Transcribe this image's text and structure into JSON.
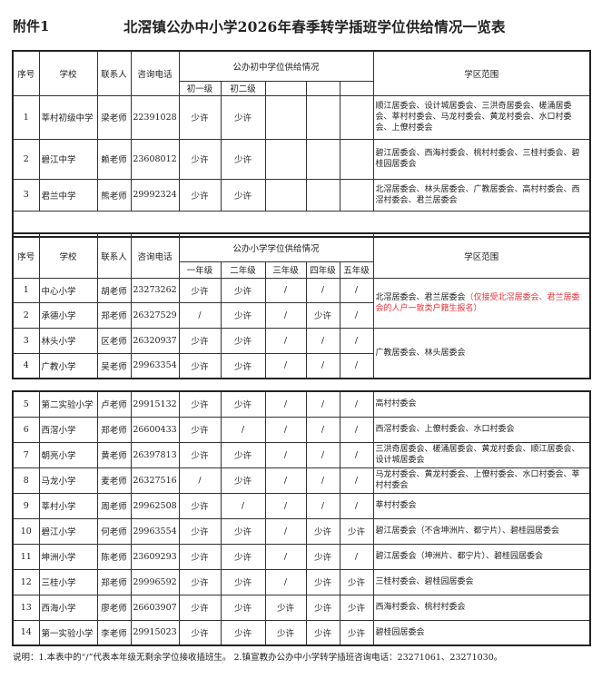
{
  "header": {
    "attachment": "附件1",
    "title": "北滘镇公办中小学2026年春季转学插班学位供给情况一览表"
  },
  "columns": {
    "no": "序号",
    "school": "学校",
    "contact": "联系人",
    "phone": "咨询电话",
    "region": "学区范围"
  },
  "middle": {
    "group_label": "公办初中学位供给情况",
    "grades": [
      "初一级",
      "初二级",
      "",
      "",
      ""
    ],
    "rows": [
      {
        "no": "1",
        "school": "莘村初级中学",
        "contact": "梁老师",
        "phone": "22391028",
        "seats": [
          "少许",
          "少许",
          "",
          "",
          ""
        ],
        "region": "顺江居委会、设计城居委会、三洪奇居委会、槎涌居委会、莘村村委会、马龙村委会、黄龙村委会、水口村委会、上僚村委会"
      },
      {
        "no": "2",
        "school": "碧江中学",
        "contact": "赖老师",
        "phone": "23608012",
        "seats": [
          "少许",
          "少许",
          "",
          "",
          ""
        ],
        "region": "碧江居委会、西海村委会、桃村村委会、三桂村委会、碧桂园居委会"
      },
      {
        "no": "3",
        "school": "君兰中学",
        "contact": "熊老师",
        "phone": "29992324",
        "seats": [
          "少许",
          "少许",
          "",
          "",
          ""
        ],
        "region": "北滘居委会、林头居委会、广教居委会、高村村委会、西滘村委会、君兰居委会"
      }
    ]
  },
  "primary": {
    "group_label": "公办小学学位供给情况",
    "grades": [
      "一年级",
      "二年级",
      "三年级",
      "四年级",
      "五年级"
    ],
    "region_groups": [
      {
        "text": "北滘居委会、君兰居委会",
        "note": "（仅接受北滘居委会、君兰居委会的人户一致类户籍生报名）"
      },
      {
        "text": "广教居委会、林头居委会",
        "note": ""
      }
    ],
    "rows_a": [
      {
        "no": "1",
        "school": "中心小学",
        "contact": "胡老师",
        "phone": "23273262",
        "seats": [
          "少许",
          "少许",
          "/",
          "/",
          "/"
        ]
      },
      {
        "no": "2",
        "school": "承德小学",
        "contact": "郑老师",
        "phone": "26327529",
        "seats": [
          "/",
          "少许",
          "/",
          "少许",
          "/"
        ]
      },
      {
        "no": "3",
        "school": "林头小学",
        "contact": "区老师",
        "phone": "26320937",
        "seats": [
          "少许",
          "少许",
          "/",
          "/",
          "/"
        ]
      },
      {
        "no": "4",
        "school": "广教小学",
        "contact": "吴老师",
        "phone": "29963354",
        "seats": [
          "少许",
          "少许",
          "/",
          "/",
          "/"
        ]
      }
    ],
    "rows_b": [
      {
        "no": "5",
        "school": "第二实验小学",
        "contact": "卢老师",
        "phone": "29915132",
        "seats": [
          "少许",
          "少许",
          "/",
          "/",
          "/"
        ],
        "region": "高村村委会"
      },
      {
        "no": "6",
        "school": "西滘小学",
        "contact": "郑老师",
        "phone": "26600433",
        "seats": [
          "少许",
          "/",
          "/",
          "/",
          "/"
        ],
        "region": "西滘村委会、上僚村委会、水口村委会"
      },
      {
        "no": "7",
        "school": "朝亮小学",
        "contact": "黄老师",
        "phone": "26397813",
        "seats": [
          "少许",
          "少许",
          "/",
          "/",
          "/"
        ],
        "region": "三洪奇居委会、槎涌居委会、黄龙村委会、顺江居委会、设计城居委会"
      },
      {
        "no": "8",
        "school": "马龙小学",
        "contact": "麦老师",
        "phone": "26327516",
        "seats": [
          "/",
          "少许",
          "/",
          "/",
          "/"
        ],
        "region": "马龙村委会、黄龙村委会、上僚村委会、水口村委会、莘村村委会"
      },
      {
        "no": "9",
        "school": "莘村小学",
        "contact": "周老师",
        "phone": "29962508",
        "seats": [
          "少许",
          "/",
          "/",
          "/",
          "/"
        ],
        "region": "莘村村委会"
      },
      {
        "no": "10",
        "school": "碧江小学",
        "contact": "何老师",
        "phone": "29963554",
        "seats": [
          "少许",
          "少许",
          "/",
          "少许",
          "少许"
        ],
        "region": "碧江居委会（不含坤洲片、都宁片）、碧桂园居委会"
      },
      {
        "no": "11",
        "school": "坤洲小学",
        "contact": "陈老师",
        "phone": "23609293",
        "seats": [
          "少许",
          "少许",
          "/",
          "少许",
          "/"
        ],
        "region": "碧江居委会（坤洲片、都宁片）、碧桂园居委会"
      },
      {
        "no": "12",
        "school": "三桂小学",
        "contact": "郑老师",
        "phone": "29996592",
        "seats": [
          "少许",
          "少许",
          "/",
          "少许",
          "少许"
        ],
        "region": "三桂村委会、碧桂园居委会"
      },
      {
        "no": "13",
        "school": "西海小学",
        "contact": "廖老师",
        "phone": "26603907",
        "seats": [
          "少许",
          "少许",
          "少许",
          "少许",
          "少许"
        ],
        "region": "西海村委会、桃村村委会"
      },
      {
        "no": "14",
        "school": "第一实验小学",
        "contact": "李老师",
        "phone": "29915023",
        "seats": [
          "少许",
          "少许",
          "少许",
          "少许",
          "少许"
        ],
        "region": "碧桂园居委会"
      }
    ]
  },
  "footnote": "说明：1.本表中的“/”代表本年级无剩余学位接收插班生。  2.镇宣教办公办中小学转学插班咨询电话：23271061、23271030。",
  "colors": {
    "text": "#222222",
    "note_red": "#e8333a",
    "border": "#333333"
  }
}
